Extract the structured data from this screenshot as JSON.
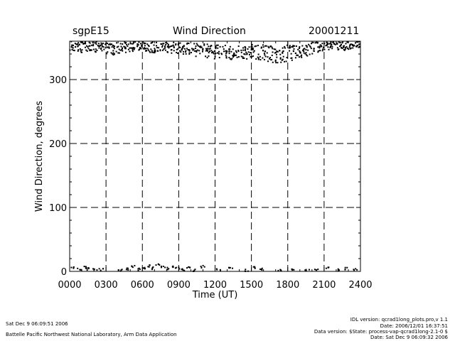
{
  "header": {
    "site": "sgpE15",
    "title": "Wind Direction",
    "date": "20001211"
  },
  "footer": {
    "left_time": "Sat Dec  9 06:09:51 2006",
    "left_org": "Battelle Pacific Northwest National Laboratory, Arm Data Application",
    "right_lines": [
      "IDL version: qcrad1long_plots.pro,v 1.1",
      "Date: 2006/12/01 16:37:51",
      "Data version: $State: process-vap-qcrad1long-2.1-0 $",
      "Date: Sat Dec  9 06:09:32 2006"
    ]
  },
  "chart_data": {
    "type": "scatter",
    "title": "Wind Direction",
    "xlabel": "Time (UT)",
    "ylabel": "Wind Direction, degrees",
    "xlim": [
      0,
      24
    ],
    "ylim": [
      0,
      360
    ],
    "x_ticks": [
      0,
      3,
      6,
      9,
      12,
      15,
      18,
      21,
      24
    ],
    "x_tick_labels": [
      "0000",
      "0300",
      "0600",
      "0900",
      "1200",
      "1500",
      "1800",
      "2100",
      "2400"
    ],
    "y_ticks": [
      0,
      100,
      200,
      300
    ],
    "y_tick_labels": [
      "0",
      "100",
      "200",
      "300"
    ],
    "grid": "dashed",
    "series": [
      {
        "color": "#000000",
        "high_band": {
          "x": [
            0.0,
            0.5,
            1.0,
            1.5,
            2.0,
            2.5,
            3.0,
            3.5,
            4.0,
            4.5,
            5.0,
            5.5,
            6.0,
            6.5,
            7.0,
            7.5,
            8.0,
            8.5,
            9.0,
            9.5,
            10.0,
            10.5,
            11.0,
            11.5,
            12.0,
            12.5,
            13.0,
            13.5,
            14.0,
            14.5,
            15.0,
            15.5,
            16.0,
            16.5,
            17.0,
            17.5,
            18.0,
            18.5,
            19.0,
            19.5,
            20.0,
            20.5,
            21.0,
            21.5,
            22.0,
            22.5,
            23.0,
            23.5,
            24.0
          ],
          "center": [
            352,
            351,
            350,
            351,
            350,
            349,
            350,
            348,
            349,
            351,
            350,
            352,
            353,
            351,
            350,
            352,
            351,
            350,
            349,
            348,
            348,
            346,
            345,
            344,
            343,
            344,
            343,
            342,
            342,
            343,
            344,
            343,
            342,
            340,
            339,
            338,
            341,
            342,
            344,
            346,
            349,
            351,
            352,
            353,
            353,
            352,
            353,
            354,
            355
          ],
          "spread": [
            8,
            8,
            9,
            8,
            9,
            10,
            9,
            10,
            9,
            8,
            9,
            7,
            6,
            8,
            9,
            7,
            8,
            9,
            9,
            10,
            10,
            11,
            11,
            11,
            11,
            10,
            11,
            11,
            12,
            11,
            11,
            12,
            12,
            13,
            13,
            14,
            13,
            12,
            11,
            10,
            9,
            8,
            7,
            6,
            6,
            7,
            6,
            5,
            5
          ]
        },
        "low_band": {
          "x": [
            0.3,
            0.8,
            1.2,
            1.6,
            2.1,
            2.6,
            4.2,
            4.8,
            5.2,
            5.7,
            6.1,
            6.5,
            6.9,
            7.3,
            7.7,
            8.1,
            8.5,
            8.9,
            9.3,
            9.8,
            10.3,
            11.0,
            12.3,
            13.3,
            14.6,
            15.2,
            15.9,
            17.3,
            18.4,
            19.6,
            20.4,
            21.3,
            22.1,
            22.9,
            23.6
          ],
          "y": [
            5,
            3,
            6,
            4,
            2,
            3,
            2,
            4,
            8,
            3,
            6,
            9,
            5,
            11,
            7,
            4,
            8,
            5,
            3,
            6,
            2,
            7,
            2,
            4,
            2,
            6,
            3,
            2,
            4,
            2,
            3,
            5,
            2,
            4,
            3
          ]
        }
      }
    ]
  }
}
